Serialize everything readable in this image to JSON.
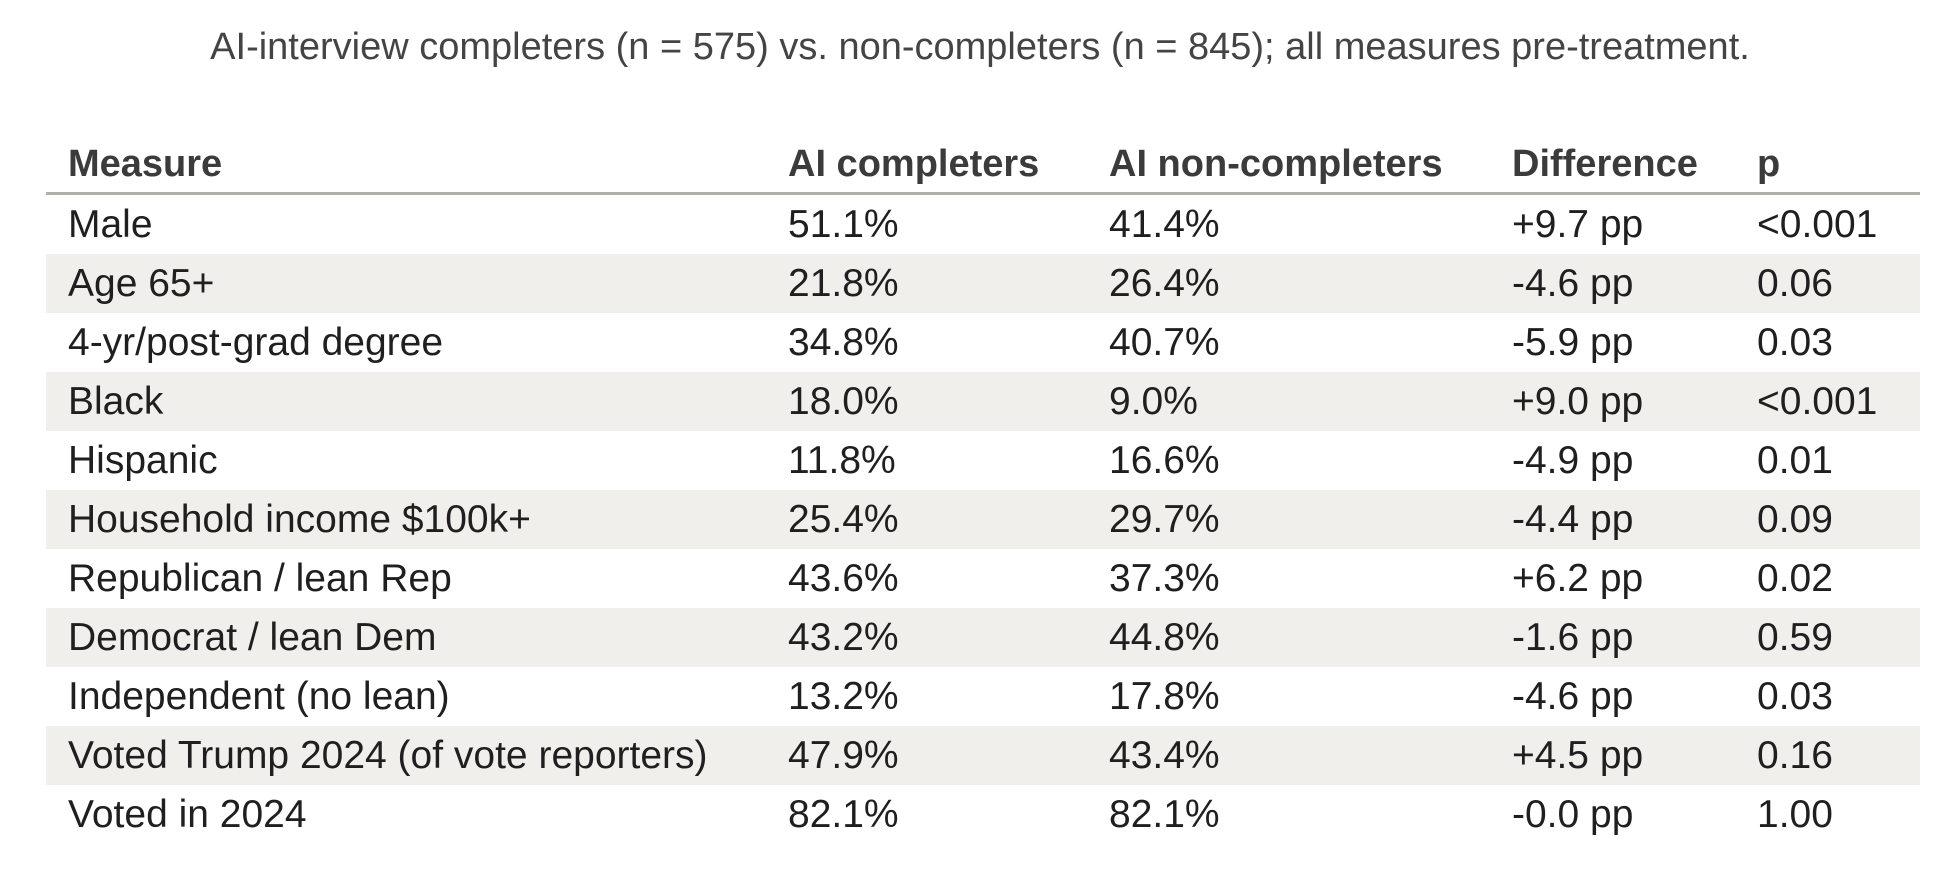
{
  "caption": "AI-interview completers (n = 575) vs. non-completers (n = 845); all measures pre-treatment.",
  "table": {
    "headers": [
      "Measure",
      "AI completers",
      "AI non-completers",
      "Difference",
      "p"
    ],
    "rows": [
      [
        "Male",
        "51.1%",
        "41.4%",
        "+9.7 pp",
        "<0.001"
      ],
      [
        "Age 65+",
        "21.8%",
        "26.4%",
        "-4.6 pp",
        "0.06"
      ],
      [
        "4-yr/post-grad degree",
        "34.8%",
        "40.7%",
        "-5.9 pp",
        "0.03"
      ],
      [
        "Black",
        "18.0%",
        "9.0%",
        "+9.0 pp",
        "<0.001"
      ],
      [
        "Hispanic",
        "11.8%",
        "16.6%",
        "-4.9 pp",
        "0.01"
      ],
      [
        "Household income $100k+",
        "25.4%",
        "29.7%",
        "-4.4 pp",
        "0.09"
      ],
      [
        "Republican / lean Rep",
        "43.6%",
        "37.3%",
        "+6.2 pp",
        "0.02"
      ],
      [
        "Democrat / lean Dem",
        "43.2%",
        "44.8%",
        "-1.6 pp",
        "0.59"
      ],
      [
        "Independent (no lean)",
        "13.2%",
        "17.8%",
        "-4.6 pp",
        "0.03"
      ],
      [
        "Voted Trump 2024 (of vote reporters)",
        "47.9%",
        "43.4%",
        "+4.5 pp",
        "0.16"
      ],
      [
        "Voted in 2024",
        "82.1%",
        "82.1%",
        "-0.0 pp",
        "1.00"
      ]
    ]
  },
  "colors": {
    "stripe": "#f0efec",
    "header_rule": "#b0b0aa",
    "text": "#1f1f1f"
  }
}
